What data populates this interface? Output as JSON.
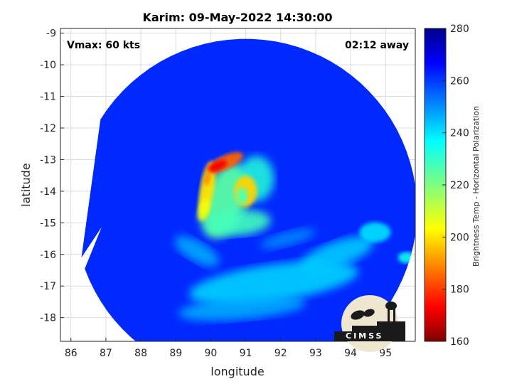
{
  "chart_data": {
    "type": "heatmap",
    "title": "Karim: 09-May-2022 14:30:00",
    "xlabel": "longitude",
    "ylabel": "latitude",
    "xlim": [
      85.7,
      95.85
    ],
    "ylim": [
      -18.75,
      -8.85
    ],
    "xticks": [
      "86",
      "87",
      "88",
      "89",
      "90",
      "91",
      "92",
      "93",
      "94",
      "95"
    ],
    "xtick_values": [
      86,
      87,
      88,
      89,
      90,
      91,
      92,
      93,
      94,
      95
    ],
    "yticks": [
      "-9",
      "-10",
      "-11",
      "-12",
      "-13",
      "-14",
      "-15",
      "-16",
      "-17",
      "-18"
    ],
    "ytick_values": [
      -9,
      -10,
      -11,
      -12,
      -13,
      -14,
      -15,
      -16,
      -17,
      -18
    ],
    "grid": true,
    "annotations": {
      "vmax": "Vmax: 60 kts",
      "away": "02:12 away"
    },
    "colorbar": {
      "label": "Brightness Temp - Horizontal Polarization",
      "colormap": "jet",
      "min": 160,
      "max": 280,
      "ticks": [
        "160",
        "180",
        "200",
        "220",
        "240",
        "260",
        "280"
      ],
      "tick_values": [
        160,
        180,
        200,
        220,
        240,
        260,
        280
      ]
    },
    "swath": {
      "center_lon": 91.0,
      "center_lat": -14.6,
      "radius_deg": 4.9,
      "outline_lon": [
        86.3,
        86.6,
        87.4,
        88.5,
        88.75,
        88.75,
        89.1,
        89.1,
        89.3,
        89.4
      ]
    },
    "features": [
      {
        "name": "eyewall-cold-core",
        "lon": 90.5,
        "lat": -13.2,
        "value": 175
      },
      {
        "name": "eye-ring",
        "lon": 91.0,
        "lat": -14.0,
        "value": 195
      },
      {
        "name": "western-band",
        "lon": 89.9,
        "lat": -14.1,
        "value": 200
      },
      {
        "name": "inner-rainband",
        "lon": 90.7,
        "lat": -15.0,
        "value": 225
      },
      {
        "name": "southern-rainband",
        "lon": 91.5,
        "lat": -16.7,
        "value": 240
      },
      {
        "name": "eastern-rainband",
        "lon": 94.5,
        "lat": -16.0,
        "value": 243
      },
      {
        "name": "background",
        "value": 262
      }
    ]
  },
  "logo": {
    "text": "CIMSS"
  }
}
